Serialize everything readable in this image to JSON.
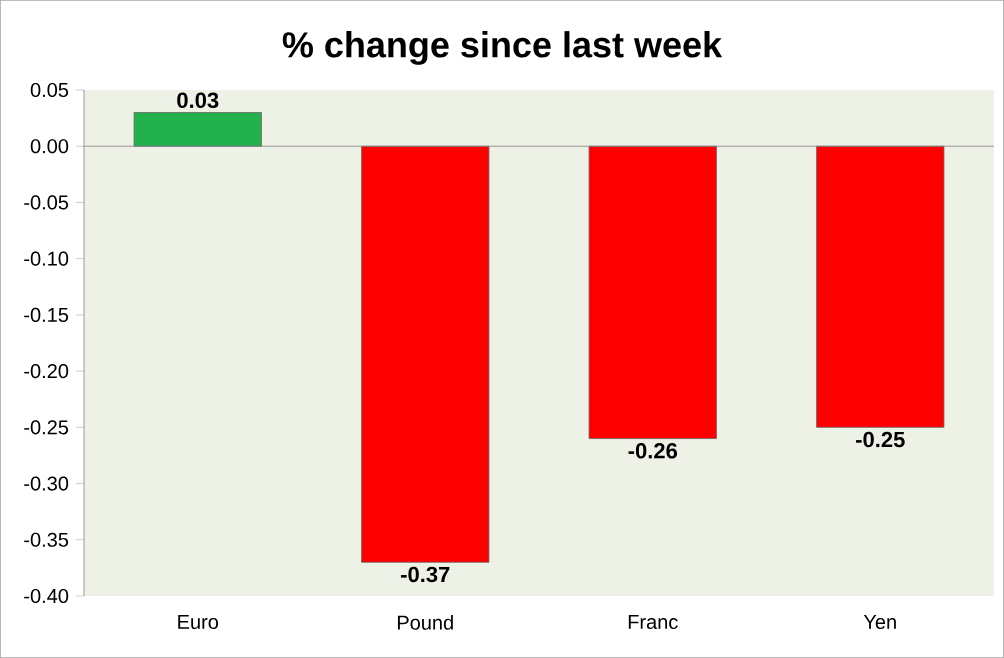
{
  "chart_data": {
    "type": "bar",
    "title": "% change since last week",
    "categories": [
      "Euro",
      "Pound",
      "Franc",
      "Yen"
    ],
    "values": [
      0.03,
      -0.37,
      -0.26,
      -0.25
    ],
    "colors": [
      "#22b14c",
      "#ff0000",
      "#ff0000",
      "#ff0000"
    ],
    "value_labels": [
      "0.03",
      "-0.37",
      "-0.26",
      "-0.25"
    ],
    "ylim": [
      -0.4,
      0.05
    ],
    "yticks": [
      {
        "value": 0.05,
        "label": "0.05"
      },
      {
        "value": 0,
        "label": "0.00"
      },
      {
        "value": -0.05,
        "label": "-0.05"
      },
      {
        "value": -0.1,
        "label": "-0.10"
      },
      {
        "value": -0.15,
        "label": "-0.15"
      },
      {
        "value": -0.2,
        "label": "-0.20"
      },
      {
        "value": -0.25,
        "label": "-0.25"
      },
      {
        "value": -0.3,
        "label": "-0.30"
      },
      {
        "value": -0.35,
        "label": "-0.35"
      },
      {
        "value": -0.4,
        "label": "-0.40"
      }
    ]
  }
}
